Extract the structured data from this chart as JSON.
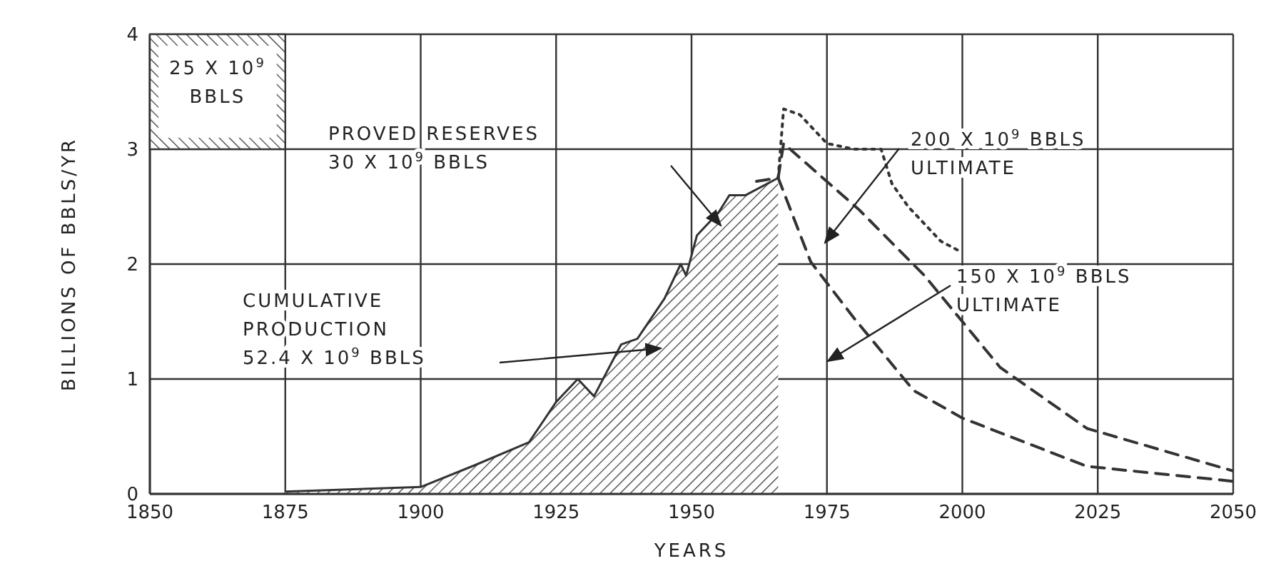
{
  "chart_data": {
    "type": "area",
    "xlabel": "YEARS",
    "ylabel": "BILLIONS OF BBLS/YR",
    "xlim": [
      1850,
      2050
    ],
    "ylim": [
      0,
      4
    ],
    "xticks": [
      1850,
      1875,
      1900,
      1925,
      1950,
      1975,
      2000,
      2025,
      2050
    ],
    "yticks": [
      0,
      1,
      2,
      3,
      4
    ],
    "grid": true,
    "series": [
      {
        "color": "#333333",
        "x": [
          1875,
          1900,
          1910,
          1920,
          1925,
          1929,
          1932,
          1937,
          1940,
          1945,
          1948,
          1949,
          1951,
          1955,
          1957,
          1960,
          1966
        ],
        "values": [
          0.02,
          0.06,
          0.25,
          0.45,
          0.8,
          1.0,
          0.85,
          1.3,
          1.35,
          1.7,
          2.0,
          1.9,
          2.25,
          2.45,
          2.6,
          2.6,
          2.75
        ]
      },
      {
        "type": "line",
        "line_style": "dotted",
        "color": "#333333",
        "x": [
          1966,
          1967,
          1970,
          1975,
          1980,
          1985,
          1987,
          1990,
          1996,
          2000
        ],
        "values": [
          2.75,
          3.35,
          3.3,
          3.05,
          3.0,
          3.0,
          2.7,
          2.5,
          2.2,
          2.1
        ]
      },
      {
        "type": "line",
        "line_style": "dashed",
        "color": "#333333",
        "x": [
          1966,
          1967,
          1981,
          1993,
          2007,
          2023,
          2050
        ],
        "values": [
          2.75,
          3.05,
          2.47,
          1.9,
          1.1,
          0.57,
          0.2
        ]
      },
      {
        "type": "line",
        "line_style": "dashed",
        "color": "#333333",
        "x": [
          1962,
          1966,
          1972,
          1980,
          1991,
          2000,
          2023,
          2050
        ],
        "values": [
          2.72,
          2.75,
          2.02,
          1.53,
          0.9,
          0.66,
          0.24,
          0.11
        ]
      }
    ],
    "annotations": [
      "25 X 10$^{9}$\nBBLS",
      "PROVED RESERVES\n30 X 10$^{9}$ BBLS",
      "CUMULATIVE\nPRODUCTION\n52.4 X 10$^{9}$ BBLS",
      "200 X 10$^{9}$ BBLS\nULTIMATE",
      "150 X 10$^{9}$ BBLS\nULTIMATE"
    ]
  }
}
